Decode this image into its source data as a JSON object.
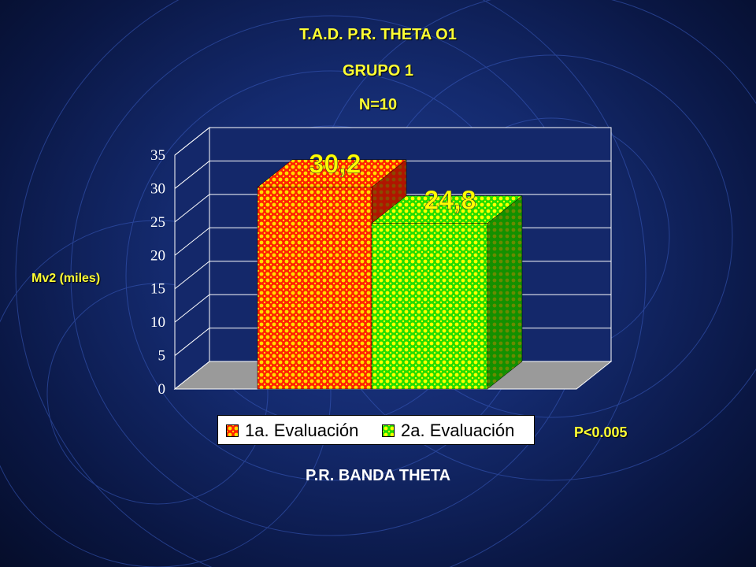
{
  "titles": {
    "line1": "T.A.D.  P.R.  THETA  O1",
    "line2": "GRUPO 1",
    "line3": "N=10"
  },
  "ylabel": "Mv2 (miles)",
  "xlabel": "P.R.  BANDA  THETA",
  "pvalue": "P<0.005",
  "legend": [
    {
      "label": "1a. Evaluación"
    },
    {
      "label": "2a. Evaluación"
    }
  ],
  "colors": {
    "series1_front": "#ff2200",
    "series1_dot": "#ffdd00",
    "series2_front": "#22dd00",
    "series2_dot": "#ffff00",
    "value_label": "#ffff00",
    "title": "#ffff33"
  },
  "chart_data": {
    "type": "bar",
    "categories": [
      ""
    ],
    "series": [
      {
        "name": "1a. Evaluación",
        "values": [
          30.2
        ],
        "value_label": "30,2"
      },
      {
        "name": "2a. Evaluación",
        "values": [
          24.8
        ],
        "value_label": "24,8"
      }
    ],
    "title": "T.A.D.  P.R.  THETA  O1",
    "subtitle": "GRUPO 1 N=10",
    "xlabel": "P.R.  BANDA  THETA",
    "ylabel": "Mv2 (miles)",
    "ylim": [
      0,
      35
    ],
    "yticks": [
      "0",
      "5",
      "10",
      "15",
      "20",
      "25",
      "30",
      "35"
    ],
    "grid": true,
    "legend_position": "bottom"
  }
}
